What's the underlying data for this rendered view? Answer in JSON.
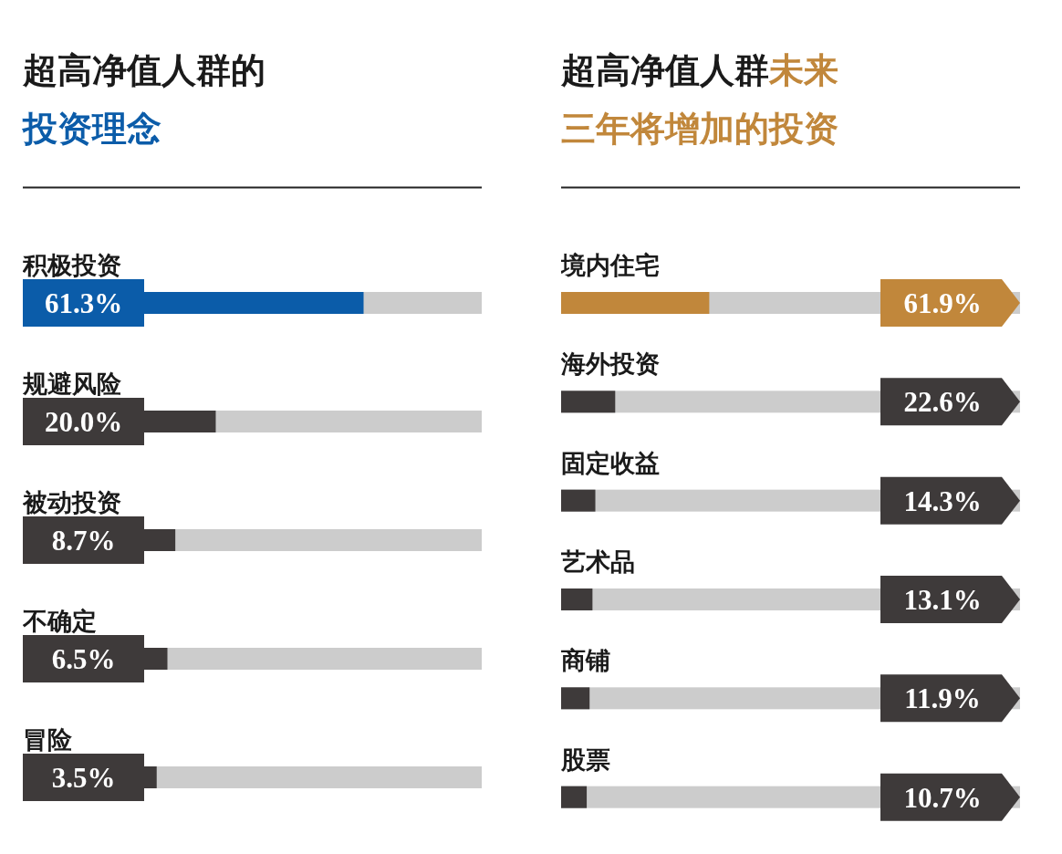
{
  "chart_data": [
    {
      "type": "bar",
      "orientation": "horizontal",
      "title": "超高净值人群的",
      "subtitle": "投资理念",
      "categories": [
        "积极投资",
        "规避风险",
        "被动投资",
        "不确定",
        "冒险"
      ],
      "values": [
        61.3,
        20.0,
        8.7,
        6.5,
        3.5
      ],
      "colors": [
        "#0b5ca9",
        "#3e3a3a",
        "#3e3a3a",
        "#3e3a3a",
        "#3e3a3a"
      ],
      "value_labels": [
        "61.3%",
        "20.0%",
        "8.7%",
        "6.5%",
        "3.5%"
      ]
    },
    {
      "type": "bar",
      "orientation": "horizontal",
      "title": "超高净值人群",
      "subtitle": "未来三年将增加的投资",
      "categories": [
        "境内住宅",
        "海外投资",
        "固定收益",
        "艺术品",
        "商铺",
        "股票"
      ],
      "values": [
        61.9,
        22.6,
        14.3,
        13.1,
        11.9,
        10.7
      ],
      "colors": [
        "#c1873b",
        "#3e3a3a",
        "#3e3a3a",
        "#3e3a3a",
        "#3e3a3a",
        "#3e3a3a"
      ],
      "value_labels": [
        "61.9%",
        "22.6%",
        "14.3%",
        "13.1%",
        "11.9%",
        "10.7%"
      ]
    }
  ]
}
